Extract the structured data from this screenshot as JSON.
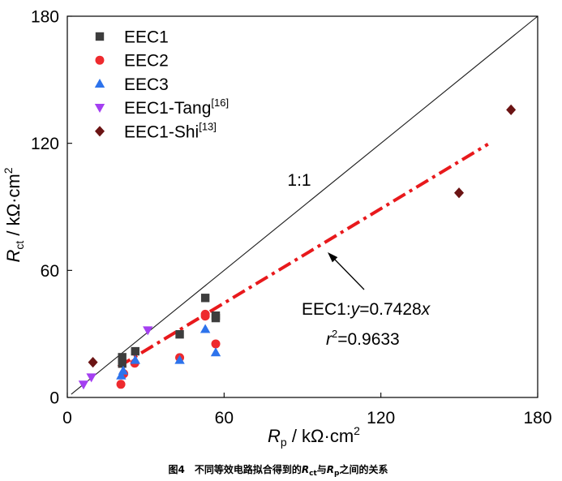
{
  "chart_data": {
    "type": "scatter",
    "grid": false,
    "x_axis": {
      "label": {
        "symbol": "R",
        "subscript": "p",
        "unit": " / kΩ·cm",
        "superscript": "2"
      },
      "range": [
        0,
        180
      ],
      "ticks": [
        0,
        60,
        120,
        180
      ]
    },
    "y_axis": {
      "label": {
        "symbol": "R",
        "subscript": "ct",
        "unit": " / kΩ·cm",
        "superscript": "2"
      },
      "range": [
        0,
        180
      ],
      "ticks": [
        0,
        60,
        120,
        180
      ]
    },
    "legend": {
      "position": "top-left"
    },
    "series": [
      {
        "name": "EEC1",
        "marker": "square",
        "color": "#3d3d3d",
        "points": [
          [
            21.0,
            19.0
          ],
          [
            21.0,
            16.0
          ],
          [
            26.0,
            21.8
          ],
          [
            43.0,
            29.8
          ],
          [
            52.8,
            47.0
          ],
          [
            56.8,
            37.5
          ],
          [
            56.8,
            38.6
          ]
        ]
      },
      {
        "name": "EEC2",
        "marker": "circle",
        "color": "#ee2a2e",
        "points": [
          [
            20.5,
            6.2
          ],
          [
            21.6,
            11.2
          ],
          [
            25.8,
            16.2
          ],
          [
            43.0,
            18.8
          ],
          [
            52.8,
            39.3
          ],
          [
            52.8,
            38.4
          ],
          [
            56.8,
            25.3
          ]
        ]
      },
      {
        "name": "EEC3",
        "marker": "triangle-up",
        "color": "#2d73ec",
        "points": [
          [
            20.6,
            10.3
          ],
          [
            21.4,
            12.6
          ],
          [
            26.0,
            17.6
          ],
          [
            43.0,
            17.6
          ],
          [
            52.8,
            32.2
          ],
          [
            56.8,
            21.2
          ]
        ]
      },
      {
        "name": "EEC1-Tang",
        "ref": "[16]",
        "marker": "triangle-down",
        "color": "#a43ff1",
        "points": [
          [
            6.2,
            6.2
          ],
          [
            9.2,
            9.6
          ],
          [
            30.8,
            31.8
          ]
        ]
      },
      {
        "name": "EEC1-Shi",
        "ref": "[13]",
        "marker": "diamond",
        "color": "#6b1414",
        "points": [
          [
            9.8,
            16.6
          ],
          [
            149.9,
            96.6
          ],
          [
            169.8,
            135.8
          ]
        ]
      }
    ],
    "reference_line": {
      "label": "1:1",
      "slope": 1,
      "x_range": [
        1.5,
        180
      ],
      "color": "#1a1a1a"
    },
    "fit_line": {
      "slope": 0.7428,
      "x_range": [
        19.5,
        161
      ],
      "color": "#e8191c",
      "equation": {
        "prefix": "EEC1:",
        "y_var": "y",
        "relation": "=0.7428",
        "x_var": "x"
      },
      "r_squared": {
        "var": "r",
        "power": "2",
        "value": "=0.9633"
      }
    }
  },
  "caption": {
    "figure_number": "图4",
    "text_before": "不同等效电路拟合得到的",
    "symbol_1": "R",
    "subscript_1": "ct",
    "connector": "与",
    "symbol_2": "R",
    "subscript_2": "p",
    "text_after": "之间的关系"
  }
}
